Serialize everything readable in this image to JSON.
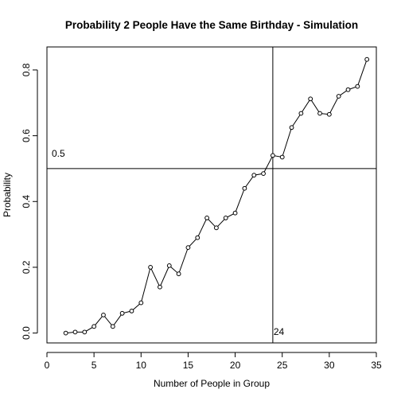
{
  "chart_data": {
    "type": "line",
    "title": "Probability 2 People Have the Same Birthday - Simulation",
    "xlabel": "Number of People in Group",
    "ylabel": "Probability",
    "xlim": [
      0,
      35
    ],
    "ylim": [
      -0.03,
      0.87
    ],
    "x_ticks": [
      0,
      5,
      10,
      15,
      20,
      25,
      30,
      35
    ],
    "y_ticks": [
      0.0,
      0.2,
      0.4,
      0.6,
      0.8
    ],
    "x_tick_labels": [
      "0",
      "5",
      "10",
      "15",
      "20",
      "25",
      "30",
      "35"
    ],
    "y_tick_labels": [
      "0.0",
      "0.2",
      "0.4",
      "0.6",
      "0.8"
    ],
    "grid": false,
    "legend": "none",
    "series": [
      {
        "x": [
          2,
          3,
          4,
          5,
          6,
          7,
          8,
          9,
          10,
          11,
          12,
          13,
          14,
          15,
          16,
          17,
          18,
          19,
          20,
          21,
          22,
          23,
          24,
          25,
          26,
          27,
          28,
          29,
          30,
          31,
          32,
          33,
          34
        ],
        "y": [
          0.0,
          0.003,
          0.003,
          0.02,
          0.055,
          0.02,
          0.06,
          0.067,
          0.092,
          0.2,
          0.14,
          0.205,
          0.18,
          0.26,
          0.29,
          0.35,
          0.32,
          0.35,
          0.365,
          0.44,
          0.48,
          0.485,
          0.54,
          0.535,
          0.625,
          0.668,
          0.712,
          0.668,
          0.665,
          0.72,
          0.74,
          0.75,
          0.832
        ],
        "color": "#000000",
        "marker": "open-circle"
      }
    ],
    "reference_lines": [
      {
        "orientation": "horizontal",
        "value": 0.5,
        "label": "0.5"
      },
      {
        "orientation": "vertical",
        "value": 24,
        "label": "24"
      }
    ]
  }
}
